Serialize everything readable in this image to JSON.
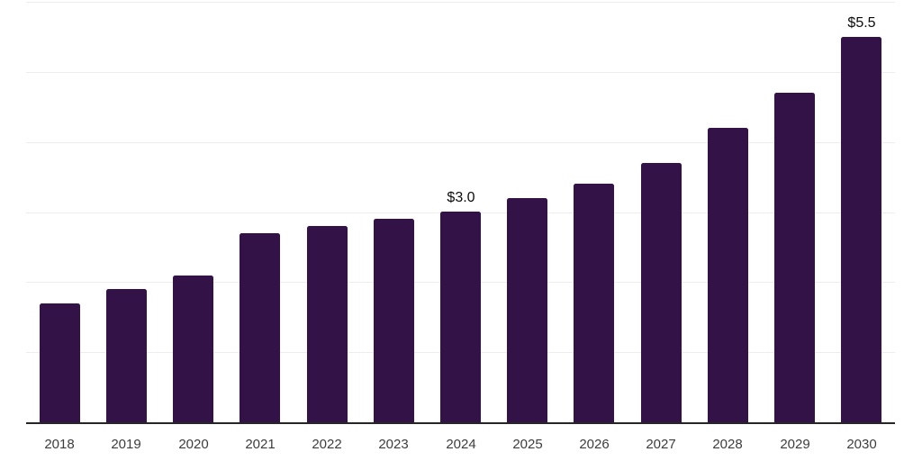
{
  "chart_data": {
    "type": "bar",
    "title": "",
    "xlabel": "",
    "ylabel": "",
    "categories": [
      "2018",
      "2019",
      "2020",
      "2021",
      "2022",
      "2023",
      "2024",
      "2025",
      "2026",
      "2027",
      "2028",
      "2029",
      "2030"
    ],
    "values": [
      1.7,
      1.9,
      2.1,
      2.7,
      2.8,
      2.9,
      3.0,
      3.2,
      3.4,
      3.7,
      4.2,
      4.7,
      5.5
    ],
    "data_labels": [
      "",
      "",
      "",
      "",
      "",
      "",
      "$3.0",
      "",
      "",
      "",
      "",
      "",
      "$5.5"
    ],
    "ylim": [
      0,
      6
    ],
    "gridline_step": 1,
    "grid": "horizontal-only",
    "legend": "none",
    "colors": {
      "bar": "#331347",
      "gridline": "#ededed",
      "axis_line": "#262626",
      "tick_label": "#3d3d3d",
      "data_label": "#0b0b0b",
      "background": "#ffffff"
    }
  }
}
